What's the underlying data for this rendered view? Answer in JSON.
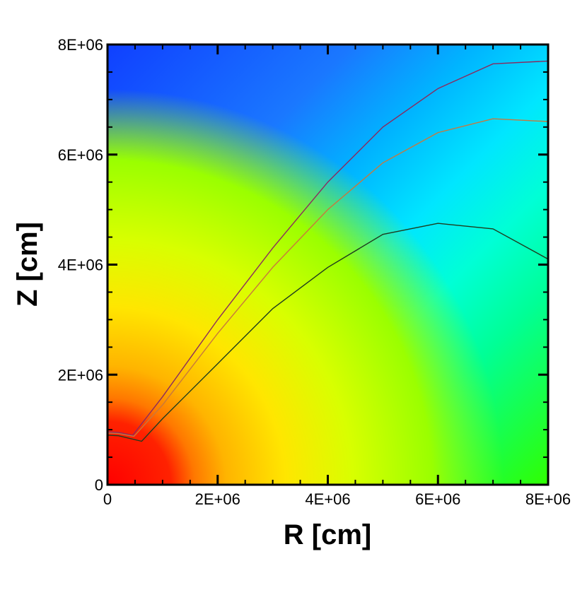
{
  "chart_data": {
    "type": "heatmap",
    "xlabel": "R [cm]",
    "ylabel": "Z [cm]",
    "xlim": [
      0,
      8000000
    ],
    "ylim": [
      0,
      8000000
    ],
    "x_ticks": [
      {
        "value": 0,
        "label": "0"
      },
      {
        "value": 2000000,
        "label": "2E+06"
      },
      {
        "value": 4000000,
        "label": "4E+06"
      },
      {
        "value": 6000000,
        "label": "6E+06"
      },
      {
        "value": 8000000,
        "label": "8E+06"
      }
    ],
    "y_ticks": [
      {
        "value": 0,
        "label": "0"
      },
      {
        "value": 2000000,
        "label": "2E+06"
      },
      {
        "value": 4000000,
        "label": "4E+06"
      },
      {
        "value": 6000000,
        "label": "6E+06"
      },
      {
        "value": 8000000,
        "label": "8E+06"
      }
    ],
    "colormap": [
      "#1040ff",
      "#1a78ff",
      "#00b4ff",
      "#00e6ff",
      "#00ffd6",
      "#00ff96",
      "#00ff5a",
      "#30ff00",
      "#9aff00",
      "#d8ff00",
      "#ffe600",
      "#ffb400",
      "#ff7800",
      "#ff3c00",
      "#ff0000"
    ],
    "grid": false,
    "contour_lines": [
      {
        "color": "#8b2a5e",
        "points": [
          [
            0,
            960000
          ],
          [
            200000,
            950000
          ],
          [
            460000,
            900000
          ],
          [
            1000000,
            1600000
          ],
          [
            2000000,
            3000000
          ],
          [
            3000000,
            4300000
          ],
          [
            4000000,
            5500000
          ],
          [
            5000000,
            6500000
          ],
          [
            6000000,
            7200000
          ],
          [
            7000000,
            7650000
          ],
          [
            8000000,
            7700000
          ]
        ]
      },
      {
        "color": "#c8783c",
        "points": [
          [
            0,
            940000
          ],
          [
            200000,
            930000
          ],
          [
            480000,
            880000
          ],
          [
            1000000,
            1450000
          ],
          [
            2000000,
            2750000
          ],
          [
            3000000,
            3950000
          ],
          [
            4000000,
            5000000
          ],
          [
            5000000,
            5850000
          ],
          [
            6000000,
            6400000
          ],
          [
            7000000,
            6650000
          ],
          [
            8000000,
            6600000
          ]
        ]
      },
      {
        "color": "#1e3c1e",
        "points": [
          [
            0,
            900000
          ],
          [
            200000,
            890000
          ],
          [
            620000,
            790000
          ],
          [
            1000000,
            1200000
          ],
          [
            2000000,
            2200000
          ],
          [
            3000000,
            3200000
          ],
          [
            4000000,
            3950000
          ],
          [
            5000000,
            4550000
          ],
          [
            6000000,
            4750000
          ],
          [
            7000000,
            4650000
          ],
          [
            8000000,
            4100000
          ]
        ]
      }
    ]
  }
}
